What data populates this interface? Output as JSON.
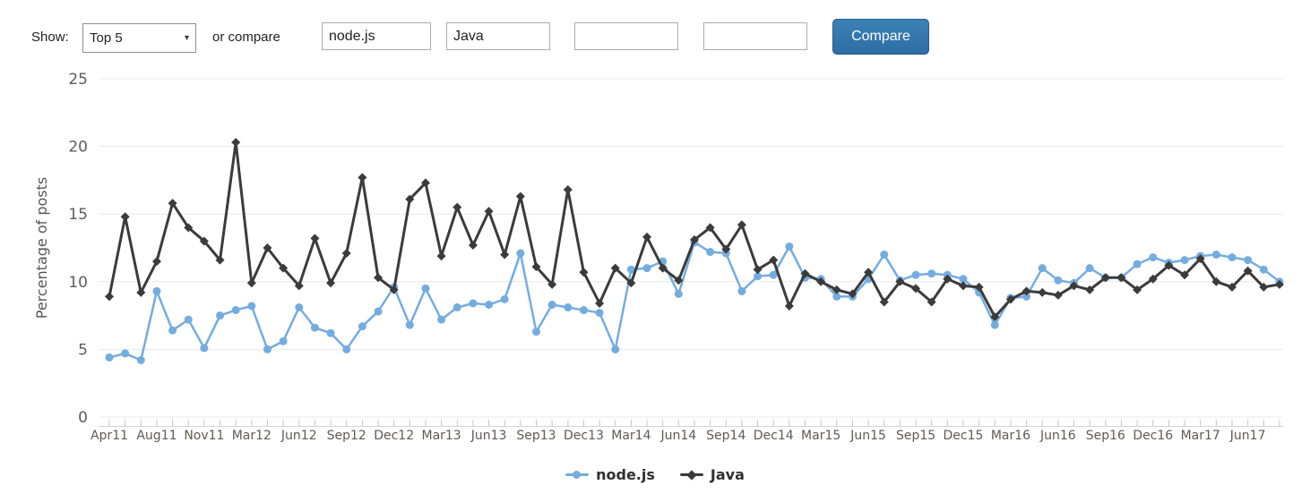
{
  "toolbar": {
    "show_label": "Show:",
    "top_filter": {
      "selected": "Top 5",
      "caret_icon": "▾"
    },
    "or_compare_label": "or compare",
    "compare_inputs": [
      {
        "value": "node.js"
      },
      {
        "value": "Java"
      },
      {
        "value": ""
      },
      {
        "value": ""
      }
    ],
    "compare_button_label": "Compare"
  },
  "chart_data": {
    "type": "line",
    "title": "",
    "xlabel": "",
    "ylabel": "Percentage of posts",
    "ylim": [
      0,
      25
    ],
    "y_ticks": [
      0,
      5,
      10,
      15,
      20,
      25
    ],
    "grid": "horizontal",
    "legend_position": "bottom-center",
    "x": [
      "Apr11",
      "May11",
      "Jun11",
      "Jul11",
      "Aug11",
      "Sep11",
      "Oct11",
      "Nov11",
      "Dec11",
      "Jan12",
      "Feb12",
      "Mar12",
      "Apr12",
      "May12",
      "Jun12",
      "Jul12",
      "Aug12",
      "Sep12",
      "Oct12",
      "Nov12",
      "Dec12",
      "Jan13",
      "Feb13",
      "Mar13",
      "Apr13",
      "May13",
      "Jun13",
      "Jul13",
      "Aug13",
      "Sep13",
      "Oct13",
      "Nov13",
      "Dec13",
      "Jan14",
      "Feb14",
      "Mar14",
      "Apr14",
      "May14",
      "Jun14",
      "Jul14",
      "Aug14",
      "Sep14",
      "Oct14",
      "Nov14",
      "Dec14",
      "Jan15",
      "Feb15",
      "Mar15",
      "Apr15",
      "May15",
      "Jun15",
      "Jul15",
      "Aug15",
      "Sep15",
      "Oct15",
      "Nov15",
      "Dec15",
      "Jan16",
      "Feb16",
      "Mar16",
      "Apr16",
      "May16",
      "Jun16",
      "Jul16",
      "Aug16",
      "Sep16",
      "Oct16",
      "Nov16",
      "Dec16",
      "Jan17",
      "Feb17",
      "Mar17",
      "Apr17",
      "May17",
      "Jun17"
    ],
    "x_tick_labels_shown": [
      "Apr11",
      "Aug11",
      "Nov11",
      "Mar12",
      "Jun12",
      "Sep12",
      "Dec12",
      "Mar13",
      "Jun13",
      "Sep13",
      "Dec13",
      "Mar14",
      "Jun14",
      "Sep14",
      "Dec14",
      "Mar15",
      "Jun15",
      "Sep15",
      "Dec15",
      "Mar16",
      "Jun16",
      "Sep16",
      "Dec16",
      "Mar17",
      "Jun17"
    ],
    "series": [
      {
        "name": "node.js",
        "color": "#75ACE0",
        "marker": "circle",
        "values": [
          4.4,
          4.7,
          4.2,
          9.3,
          6.4,
          7.2,
          5.1,
          7.5,
          7.9,
          8.2,
          5.0,
          5.6,
          8.1,
          6.6,
          6.2,
          5.0,
          6.7,
          7.8,
          9.6,
          6.8,
          9.5,
          7.2,
          8.1,
          8.4,
          8.3,
          8.7,
          12.1,
          6.3,
          8.3,
          8.1,
          7.9,
          7.7,
          5.0,
          10.9,
          11.0,
          11.5,
          9.1,
          12.9,
          12.2,
          12.1,
          9.3,
          10.4,
          10.5,
          12.6,
          10.3,
          10.2,
          8.9,
          8.9,
          10.2,
          12.0,
          10.1,
          10.5,
          10.6,
          10.5,
          10.2,
          9.2,
          6.8,
          8.8,
          8.9,
          11.0,
          10.1,
          9.9,
          11.0,
          10.3,
          10.3,
          11.3,
          11.8,
          11.4,
          11.6,
          11.9,
          12.0,
          11.8,
          11.6,
          10.9,
          10.0
        ]
      },
      {
        "name": "Java",
        "color": "#3B3B3B",
        "marker": "diamond",
        "values": [
          8.9,
          14.8,
          9.2,
          11.5,
          15.8,
          14.0,
          13.0,
          11.6,
          20.3,
          9.9,
          12.5,
          11.0,
          9.7,
          13.2,
          9.9,
          12.1,
          17.7,
          10.3,
          9.4,
          16.1,
          17.3,
          11.9,
          15.5,
          12.7,
          15.2,
          12.0,
          16.3,
          11.1,
          9.8,
          16.8,
          10.7,
          8.4,
          11.0,
          9.9,
          13.3,
          11.0,
          10.1,
          13.1,
          14.0,
          12.4,
          14.2,
          10.9,
          11.6,
          8.2,
          10.6,
          10.0,
          9.4,
          9.1,
          10.7,
          8.5,
          10.0,
          9.5,
          8.5,
          10.2,
          9.7,
          9.6,
          7.4,
          8.7,
          9.3,
          9.2,
          9.0,
          9.7,
          9.4,
          10.3,
          10.3,
          9.4,
          10.2,
          11.2,
          10.5,
          11.7,
          10.0,
          9.6,
          10.8,
          9.6,
          9.8
        ]
      }
    ],
    "colors": {
      "grid": "#E8E8E8",
      "axis_baseline": "#D4D4D4",
      "axis_ticks": "#BDC7DB",
      "y_tick_text": "#5C5C5C",
      "x_tick_text": "#615A51",
      "axis_title_text": "#555555"
    }
  }
}
